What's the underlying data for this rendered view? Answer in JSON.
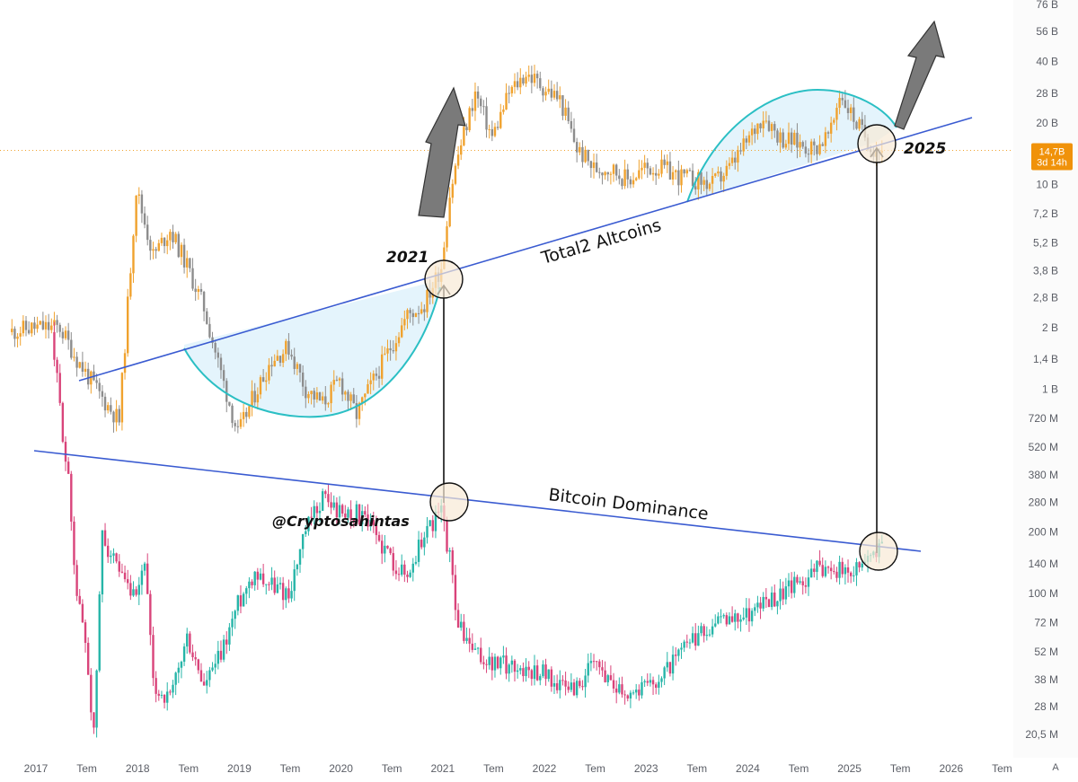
{
  "chart_data": {
    "type": "candlestick",
    "scale": "log",
    "price_axis": {
      "ticks": [
        "76 B",
        "56 B",
        "40 B",
        "28 B",
        "20 B",
        "14,7B",
        "10 B",
        "7,2 B",
        "5,2 B",
        "3,8 B",
        "2,8 B",
        "2 B",
        "1,4 B",
        "1 B",
        "720 M",
        "520 M",
        "380 M",
        "280 M",
        "200 M",
        "140 M",
        "100 M",
        "72 M",
        "52 M",
        "38 M",
        "28 M",
        "20,5 M"
      ],
      "tick_values": [
        76000000000.0,
        56000000000.0,
        40000000000.0,
        28000000000.0,
        20000000000.0,
        14700000000.0,
        10000000000.0,
        7200000000.0,
        5200000000.0,
        3800000000.0,
        2800000000.0,
        2000000000.0,
        1400000000.0,
        1000000000.0,
        720000000.0,
        520000000.0,
        380000000.0,
        280000000.0,
        200000000.0,
        140000000.0,
        100000000.0,
        72000000.0,
        52000000.0,
        38000000.0,
        28000000.0,
        20500000.0
      ]
    },
    "time_axis": {
      "labels": [
        "2017",
        "Tem",
        "2018",
        "Tem",
        "2019",
        "Tem",
        "2020",
        "Tem",
        "2021",
        "Tem",
        "2022",
        "Tem",
        "2023",
        "Tem",
        "2024",
        "Tem",
        "2025",
        "Tem",
        "2026",
        "Tem"
      ],
      "bold": [
        true,
        false,
        true,
        false,
        true,
        false,
        true,
        false,
        true,
        false,
        true,
        false,
        true,
        false,
        true,
        false,
        true,
        false,
        true,
        false
      ],
      "range": [
        "2017-01",
        "2026-07"
      ]
    },
    "current_price": {
      "label": "14,7B",
      "countdown": "3d 14h",
      "value": 14700000000.0
    },
    "series": [
      {
        "name": "Total2 Altcoins",
        "color_up": "#f0a22e",
        "color_down": "#8d8d8d",
        "points": [
          [
            "2016-10",
            1900000000.0
          ],
          [
            "2017-01",
            2000000000.0
          ],
          [
            "2017-04",
            2000000000.0
          ],
          [
            "2017-06",
            1400000000.0
          ],
          [
            "2017-09",
            900000000.0
          ],
          [
            "2017-11",
            700000000.0
          ],
          [
            "2018-01",
            9500000000.0
          ],
          [
            "2018-03",
            4500000000.0
          ],
          [
            "2018-05",
            6000000000.0
          ],
          [
            "2018-07",
            4000000000.0
          ],
          [
            "2018-09",
            2500000000.0
          ],
          [
            "2018-11",
            1200000000.0
          ],
          [
            "2019-01",
            600000000.0
          ],
          [
            "2019-03",
            950000000.0
          ],
          [
            "2019-05",
            1400000000.0
          ],
          [
            "2019-07",
            1600000000.0
          ],
          [
            "2019-09",
            1000000000.0
          ],
          [
            "2019-11",
            850000000.0
          ],
          [
            "2020-01",
            1100000000.0
          ],
          [
            "2020-03",
            750000000.0
          ],
          [
            "2020-05",
            1100000000.0
          ],
          [
            "2020-07",
            1600000000.0
          ],
          [
            "2020-09",
            2300000000.0
          ],
          [
            "2020-11",
            2600000000.0
          ],
          [
            "2021-01",
            4000000000.0
          ],
          [
            "2021-02",
            9000000000.0
          ],
          [
            "2021-03",
            14000000000.0
          ],
          [
            "2021-05",
            28000000000.0
          ],
          [
            "2021-07",
            17000000000.0
          ],
          [
            "2021-09",
            28000000000.0
          ],
          [
            "2021-11",
            35000000000.0
          ],
          [
            "2022-01",
            30000000000.0
          ],
          [
            "2022-03",
            26000000000.0
          ],
          [
            "2022-05",
            15000000000.0
          ],
          [
            "2022-07",
            12000000000.0
          ],
          [
            "2022-09",
            12000000000.0
          ],
          [
            "2022-11",
            10500000000.0
          ],
          [
            "2023-01",
            12000000000.0
          ],
          [
            "2023-03",
            12000000000.0
          ],
          [
            "2023-05",
            11000000000.0
          ],
          [
            "2023-07",
            10500000000.0
          ],
          [
            "2023-09",
            10000000000.0
          ],
          [
            "2023-11",
            12000000000.0
          ],
          [
            "2024-01",
            16000000000.0
          ],
          [
            "2024-03",
            22000000000.0
          ],
          [
            "2024-05",
            17000000000.0
          ],
          [
            "2024-07",
            16000000000.0
          ],
          [
            "2024-09",
            15000000000.0
          ],
          [
            "2024-11",
            18000000000.0
          ],
          [
            "2024-12",
            28000000000.0
          ],
          [
            "2025-02",
            20000000000.0
          ],
          [
            "2025-04",
            15000000000.0
          ],
          [
            "2025-05",
            14700000000.0
          ]
        ]
      },
      {
        "name": "Bitcoin Dominance",
        "color_up": "#26b5a8",
        "color_down": "#d9447a",
        "points": [
          [
            "2017-03",
            1900000000.0
          ],
          [
            "2017-05",
            350000000.0
          ],
          [
            "2017-06",
            100000000.0
          ],
          [
            "2017-07",
            60000000.0
          ],
          [
            "2017-08",
            20000000.0
          ],
          [
            "2017-09",
            200000000.0
          ],
          [
            "2017-11",
            120000000.0
          ],
          [
            "2018-01",
            90000000.0
          ],
          [
            "2018-02",
            150000000.0
          ],
          [
            "2018-03",
            35000000.0
          ],
          [
            "2018-05",
            30000000.0
          ],
          [
            "2018-07",
            60000000.0
          ],
          [
            "2018-09",
            35000000.0
          ],
          [
            "2018-11",
            50000000.0
          ],
          [
            "2019-01",
            90000000.0
          ],
          [
            "2019-03",
            130000000.0
          ],
          [
            "2019-05",
            110000000.0
          ],
          [
            "2019-07",
            100000000.0
          ],
          [
            "2019-09",
            200000000.0
          ],
          [
            "2019-11",
            300000000.0
          ],
          [
            "2020-01",
            250000000.0
          ],
          [
            "2020-03",
            250000000.0
          ],
          [
            "2020-05",
            200000000.0
          ],
          [
            "2020-07",
            150000000.0
          ],
          [
            "2020-09",
            120000000.0
          ],
          [
            "2020-11",
            200000000.0
          ],
          [
            "2021-01",
            250000000.0
          ],
          [
            "2021-02",
            150000000.0
          ],
          [
            "2021-03",
            70000000.0
          ],
          [
            "2021-05",
            50000000.0
          ],
          [
            "2021-07",
            45000000.0
          ],
          [
            "2021-09",
            45000000.0
          ],
          [
            "2021-11",
            42000000.0
          ],
          [
            "2022-01",
            42000000.0
          ],
          [
            "2022-03",
            35000000.0
          ],
          [
            "2022-05",
            35000000.0
          ],
          [
            "2022-07",
            45000000.0
          ],
          [
            "2022-09",
            38000000.0
          ],
          [
            "2022-11",
            33000000.0
          ],
          [
            "2023-01",
            35000000.0
          ],
          [
            "2023-03",
            40000000.0
          ],
          [
            "2023-05",
            50000000.0
          ],
          [
            "2023-07",
            60000000.0
          ],
          [
            "2023-09",
            70000000.0
          ],
          [
            "2023-11",
            75000000.0
          ],
          [
            "2024-01",
            80000000.0
          ],
          [
            "2024-03",
            90000000.0
          ],
          [
            "2024-05",
            100000000.0
          ],
          [
            "2024-07",
            110000000.0
          ],
          [
            "2024-09",
            130000000.0
          ],
          [
            "2024-11",
            140000000.0
          ],
          [
            "2025-01",
            120000000.0
          ],
          [
            "2025-03",
            150000000.0
          ],
          [
            "2025-05",
            170000000.0
          ]
        ]
      }
    ],
    "annotations": {
      "watermark": "@Cryptosahintas",
      "marker_2021": "2021",
      "marker_2025": "2025",
      "altcoin_label": "Total2 Altcoins",
      "dominance_label": "Bitcoin Dominance"
    }
  },
  "legend_axis_button": "A",
  "colors": {
    "trendline": "#3a5bd1",
    "arc": "#2bbfc4",
    "arc_fill": "#dff2fb",
    "circle_fill": "#f8ead6",
    "arrow": "#7a7a7a",
    "price_tag": "#f0920a",
    "price_line": "#f0a22e"
  }
}
